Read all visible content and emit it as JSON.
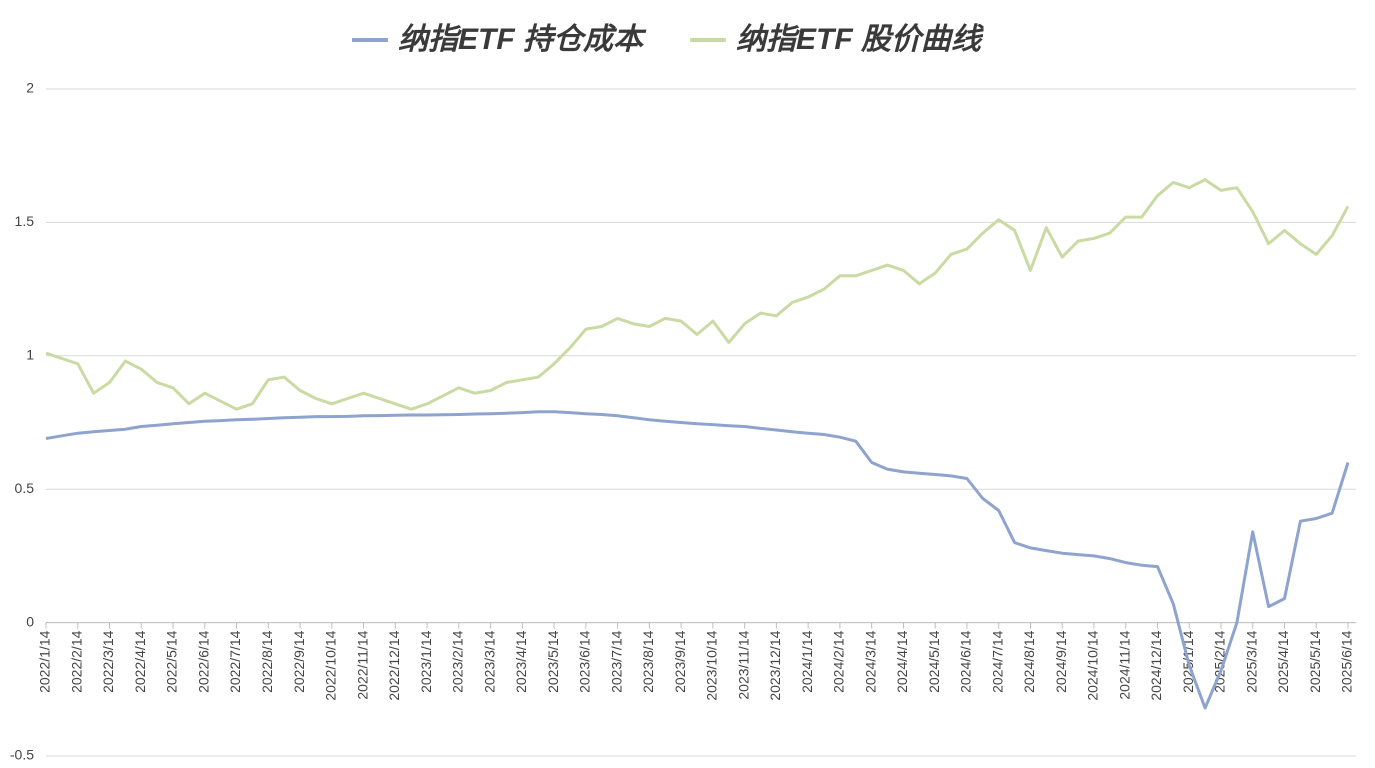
{
  "chart_data": {
    "type": "line",
    "categories": [
      "2022/1/14",
      null,
      "2022/2/14",
      null,
      "2022/3/14",
      null,
      "2022/4/14",
      null,
      "2022/5/14",
      null,
      "2022/6/14",
      null,
      "2022/7/14",
      null,
      "2022/8/14",
      null,
      "2022/9/14",
      null,
      "2022/10/14",
      null,
      "2022/11/14",
      null,
      "2022/12/14",
      null,
      "2023/1/14",
      null,
      "2023/2/14",
      null,
      "2023/3/14",
      null,
      "2023/4/14",
      null,
      "2023/5/14",
      null,
      "2023/6/14",
      null,
      "2023/7/14",
      null,
      "2023/8/14",
      null,
      "2023/9/14",
      null,
      "2023/10/14",
      null,
      "2023/11/14",
      null,
      "2023/12/14",
      null,
      "2024/1/14",
      null,
      "2024/2/14",
      null,
      "2024/3/14",
      null,
      "2024/4/14",
      null,
      "2024/5/14",
      null,
      "2024/6/14",
      null,
      "2024/7/14",
      null,
      "2024/8/14",
      null,
      "2024/9/14",
      null,
      "2024/10/14",
      null,
      "2024/11/14",
      null,
      "2024/12/14",
      null,
      "2025/1/14",
      null,
      "2025/2/14",
      null,
      "2025/3/14",
      null,
      "2025/4/14",
      null,
      "2025/5/14",
      null,
      "2025/6/14"
    ],
    "series": [
      {
        "name": "纳指ETF 持仓成本",
        "color": "#8ea3cd",
        "values": [
          0.69,
          0.7,
          0.71,
          0.715,
          0.72,
          0.725,
          0.735,
          0.74,
          0.745,
          0.75,
          0.755,
          0.757,
          0.76,
          0.762,
          0.765,
          0.768,
          0.77,
          0.772,
          0.772,
          0.773,
          0.775,
          0.776,
          0.777,
          0.778,
          0.778,
          0.779,
          0.78,
          0.782,
          0.783,
          0.785,
          0.787,
          0.79,
          0.79,
          0.787,
          0.783,
          0.78,
          0.775,
          0.768,
          0.76,
          0.755,
          0.75,
          0.745,
          0.742,
          0.738,
          0.735,
          0.728,
          0.722,
          0.715,
          0.71,
          0.705,
          0.695,
          0.68,
          0.6,
          0.575,
          0.565,
          0.56,
          0.555,
          0.55,
          0.54,
          0.465,
          0.42,
          0.3,
          0.28,
          0.27,
          0.26,
          0.255,
          0.25,
          0.24,
          0.225,
          0.215,
          0.21,
          0.07,
          -0.16,
          -0.32,
          -0.18,
          0.0,
          0.34,
          0.06,
          0.09,
          0.38,
          0.39,
          0.41,
          0.6
        ]
      },
      {
        "name": "纳指ETF 股价曲线",
        "color": "#c9dba3",
        "values": [
          1.01,
          0.99,
          0.97,
          0.86,
          0.9,
          0.98,
          0.95,
          0.9,
          0.88,
          0.82,
          0.86,
          0.83,
          0.8,
          0.82,
          0.91,
          0.92,
          0.87,
          0.84,
          0.82,
          0.84,
          0.86,
          0.84,
          0.82,
          0.8,
          0.82,
          0.85,
          0.88,
          0.86,
          0.87,
          0.9,
          0.91,
          0.92,
          0.97,
          1.03,
          1.1,
          1.11,
          1.14,
          1.12,
          1.11,
          1.14,
          1.13,
          1.08,
          1.13,
          1.05,
          1.12,
          1.16,
          1.15,
          1.2,
          1.22,
          1.25,
          1.3,
          1.3,
          1.32,
          1.34,
          1.32,
          1.27,
          1.31,
          1.38,
          1.4,
          1.46,
          1.51,
          1.47,
          1.32,
          1.48,
          1.37,
          1.43,
          1.44,
          1.46,
          1.52,
          1.52,
          1.6,
          1.65,
          1.63,
          1.66,
          1.62,
          1.63,
          1.54,
          1.42,
          1.47,
          1.42,
          1.38,
          1.45,
          1.56
        ]
      }
    ],
    "ylim": [
      -0.5,
      2
    ],
    "yticks": [
      -0.5,
      0,
      0.5,
      1,
      1.5,
      2
    ],
    "grid": true,
    "legend": "top"
  }
}
